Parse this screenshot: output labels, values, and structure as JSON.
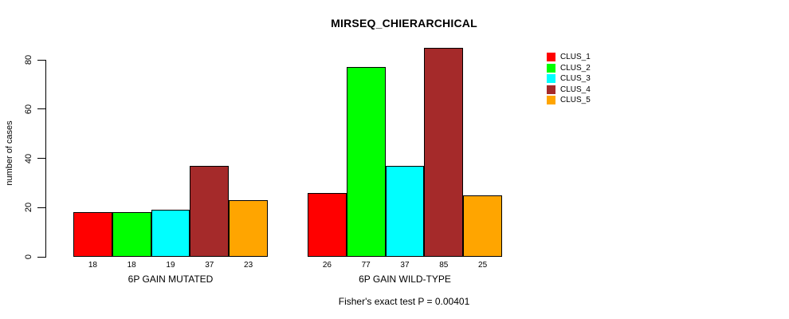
{
  "chart_data": {
    "type": "bar",
    "title": "MIRSEQ_CHIERARCHICAL",
    "ylabel": "number of cases",
    "yticks": [
      0,
      20,
      40,
      60,
      80
    ],
    "ylim": [
      0,
      85
    ],
    "grid": false,
    "legend_position": "right-outside",
    "footnote": "Fisher's exact test P = 0.00401",
    "legend": [
      {
        "label": "CLUS_1",
        "color": "#FF0000"
      },
      {
        "label": "CLUS_2",
        "color": "#00FF00"
      },
      {
        "label": "CLUS_3",
        "color": "#00FFFF"
      },
      {
        "label": "CLUS_4",
        "color": "#A52A2A"
      },
      {
        "label": "CLUS_5",
        "color": "#FFA500"
      }
    ],
    "groups": [
      {
        "label": "6P GAIN MUTATED",
        "values": [
          18,
          18,
          19,
          37,
          23
        ]
      },
      {
        "label": "6P GAIN WILD-TYPE",
        "values": [
          26,
          77,
          37,
          85,
          25
        ]
      }
    ],
    "bar_value_labels_shown": true
  }
}
